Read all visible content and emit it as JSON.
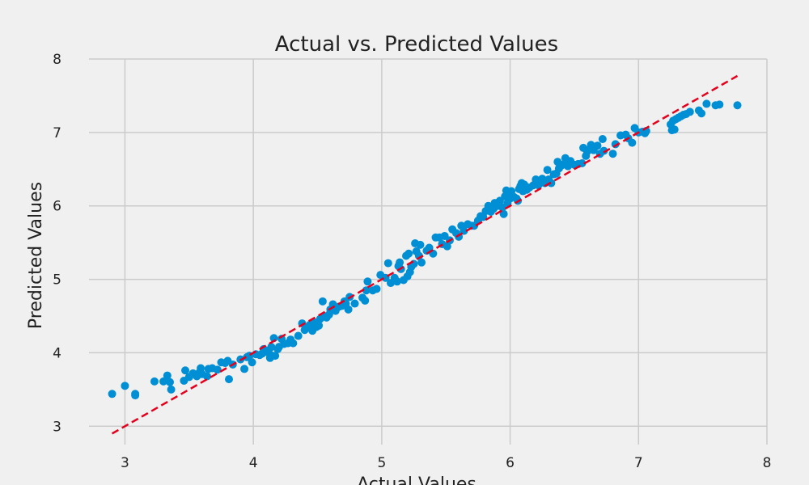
{
  "chart_data": {
    "type": "scatter",
    "title": "Actual vs. Predicted Values",
    "xlabel": "Actual Values",
    "ylabel": "Predicted Values",
    "xlim": [
      2.72,
      8.0
    ],
    "ylim": [
      2.75,
      8.0
    ],
    "xticks": [
      3,
      4,
      5,
      6,
      7,
      8
    ],
    "yticks": [
      3,
      4,
      5,
      6,
      7,
      8
    ],
    "grid": true,
    "point_color": "#008fd5",
    "reference_line": {
      "style": "dashed",
      "color": "#e5001c",
      "x": [
        2.9,
        7.77
      ],
      "y": [
        2.9,
        7.77
      ]
    },
    "series": [
      {
        "points": [
          [
            2.9,
            3.44
          ],
          [
            3.0,
            3.55
          ],
          [
            3.08,
            3.42
          ],
          [
            3.08,
            3.44
          ],
          [
            3.23,
            3.61
          ],
          [
            3.3,
            3.61
          ],
          [
            3.33,
            3.69
          ],
          [
            3.35,
            3.6
          ],
          [
            3.36,
            3.5
          ],
          [
            3.46,
            3.62
          ],
          [
            3.47,
            3.76
          ],
          [
            3.5,
            3.67
          ],
          [
            3.53,
            3.72
          ],
          [
            3.56,
            3.68
          ],
          [
            3.58,
            3.73
          ],
          [
            3.59,
            3.79
          ],
          [
            3.6,
            3.71
          ],
          [
            3.64,
            3.68
          ],
          [
            3.65,
            3.78
          ],
          [
            3.68,
            3.79
          ],
          [
            3.72,
            3.77
          ],
          [
            3.75,
            3.87
          ],
          [
            3.78,
            3.86
          ],
          [
            3.8,
            3.89
          ],
          [
            3.81,
            3.64
          ],
          [
            3.84,
            3.84
          ],
          [
            3.9,
            3.91
          ],
          [
            3.93,
            3.78
          ],
          [
            3.95,
            3.94
          ],
          [
            3.97,
            3.96
          ],
          [
            3.99,
            3.87
          ],
          [
            4.02,
            3.98
          ],
          [
            4.05,
            3.97
          ],
          [
            4.07,
            3.99
          ],
          [
            4.08,
            4.05
          ],
          [
            4.1,
            4.03
          ],
          [
            4.12,
            4.0
          ],
          [
            4.13,
            3.93
          ],
          [
            4.14,
            4.08
          ],
          [
            4.15,
            3.96
          ],
          [
            4.16,
            4.2
          ],
          [
            4.17,
            3.96
          ],
          [
            4.19,
            4.05
          ],
          [
            4.2,
            4.08
          ],
          [
            4.22,
            4.19
          ],
          [
            4.24,
            4.12
          ],
          [
            4.27,
            4.13
          ],
          [
            4.29,
            4.18
          ],
          [
            4.31,
            4.13
          ],
          [
            4.35,
            4.23
          ],
          [
            4.38,
            4.4
          ],
          [
            4.4,
            4.31
          ],
          [
            4.42,
            4.35
          ],
          [
            4.44,
            4.38
          ],
          [
            4.46,
            4.3
          ],
          [
            4.47,
            4.42
          ],
          [
            4.49,
            4.35
          ],
          [
            4.51,
            4.37
          ],
          [
            4.52,
            4.46
          ],
          [
            4.54,
            4.7
          ],
          [
            4.55,
            4.5
          ],
          [
            4.57,
            4.48
          ],
          [
            4.59,
            4.52
          ],
          [
            4.6,
            4.59
          ],
          [
            4.62,
            4.66
          ],
          [
            4.64,
            4.57
          ],
          [
            4.65,
            4.61
          ],
          [
            4.67,
            4.63
          ],
          [
            4.69,
            4.64
          ],
          [
            4.71,
            4.7
          ],
          [
            4.72,
            4.67
          ],
          [
            4.74,
            4.59
          ],
          [
            4.75,
            4.76
          ],
          [
            4.79,
            4.67
          ],
          [
            4.85,
            4.75
          ],
          [
            4.87,
            4.71
          ],
          [
            4.88,
            4.85
          ],
          [
            4.89,
            4.97
          ],
          [
            4.93,
            4.85
          ],
          [
            4.96,
            4.87
          ],
          [
            4.99,
            5.06
          ],
          [
            5.03,
            5.02
          ],
          [
            5.05,
            5.22
          ],
          [
            5.07,
            4.95
          ],
          [
            5.1,
            5.02
          ],
          [
            5.12,
            4.97
          ],
          [
            5.13,
            5.18
          ],
          [
            5.14,
            5.23
          ],
          [
            5.15,
            5.14
          ],
          [
            5.17,
            4.99
          ],
          [
            5.19,
            5.32
          ],
          [
            5.2,
            5.04
          ],
          [
            5.21,
            5.35
          ],
          [
            5.22,
            5.1
          ],
          [
            5.23,
            5.17
          ],
          [
            5.25,
            5.21
          ],
          [
            5.26,
            5.49
          ],
          [
            5.27,
            5.38
          ],
          [
            5.29,
            5.32
          ],
          [
            5.3,
            5.47
          ],
          [
            5.31,
            5.23
          ],
          [
            5.35,
            5.39
          ],
          [
            5.37,
            5.43
          ],
          [
            5.4,
            5.35
          ],
          [
            5.42,
            5.57
          ],
          [
            5.45,
            5.57
          ],
          [
            5.47,
            5.48
          ],
          [
            5.49,
            5.59
          ],
          [
            5.51,
            5.45
          ],
          [
            5.53,
            5.53
          ],
          [
            5.55,
            5.68
          ],
          [
            5.58,
            5.63
          ],
          [
            5.6,
            5.58
          ],
          [
            5.62,
            5.73
          ],
          [
            5.64,
            5.66
          ],
          [
            5.67,
            5.75
          ],
          [
            5.7,
            5.73
          ],
          [
            5.72,
            5.73
          ],
          [
            5.75,
            5.8
          ],
          [
            5.77,
            5.86
          ],
          [
            5.79,
            5.85
          ],
          [
            5.81,
            5.93
          ],
          [
            5.83,
            6.0
          ],
          [
            5.85,
            5.92
          ],
          [
            5.87,
            5.96
          ],
          [
            5.88,
            6.04
          ],
          [
            5.9,
            6.0
          ],
          [
            5.92,
            6.07
          ],
          [
            5.94,
            5.98
          ],
          [
            5.95,
            5.89
          ],
          [
            5.96,
            6.13
          ],
          [
            5.97,
            6.21
          ],
          [
            5.98,
            6.04
          ],
          [
            5.99,
            6.15
          ],
          [
            6.0,
            6.1
          ],
          [
            6.01,
            6.2
          ],
          [
            6.03,
            6.12
          ],
          [
            6.05,
            6.1
          ],
          [
            6.06,
            6.07
          ],
          [
            6.07,
            6.23
          ],
          [
            6.08,
            6.27
          ],
          [
            6.09,
            6.31
          ],
          [
            6.1,
            6.2
          ],
          [
            6.11,
            6.29
          ],
          [
            6.13,
            6.22
          ],
          [
            6.15,
            6.25
          ],
          [
            6.18,
            6.28
          ],
          [
            6.2,
            6.36
          ],
          [
            6.22,
            6.28
          ],
          [
            6.25,
            6.37
          ],
          [
            6.27,
            6.31
          ],
          [
            6.29,
            6.49
          ],
          [
            6.3,
            6.36
          ],
          [
            6.32,
            6.31
          ],
          [
            6.34,
            6.43
          ],
          [
            6.36,
            6.44
          ],
          [
            6.37,
            6.6
          ],
          [
            6.38,
            6.51
          ],
          [
            6.4,
            6.55
          ],
          [
            6.42,
            6.57
          ],
          [
            6.43,
            6.65
          ],
          [
            6.45,
            6.54
          ],
          [
            6.47,
            6.61
          ],
          [
            6.5,
            6.56
          ],
          [
            6.53,
            6.57
          ],
          [
            6.56,
            6.58
          ],
          [
            6.57,
            6.79
          ],
          [
            6.59,
            6.68
          ],
          [
            6.6,
            6.74
          ],
          [
            6.62,
            6.77
          ],
          [
            6.63,
            6.83
          ],
          [
            6.65,
            6.76
          ],
          [
            6.68,
            6.82
          ],
          [
            6.7,
            6.71
          ],
          [
            6.72,
            6.91
          ],
          [
            6.73,
            6.75
          ],
          [
            6.8,
            6.71
          ],
          [
            6.82,
            6.84
          ],
          [
            6.86,
            6.96
          ],
          [
            6.9,
            6.97
          ],
          [
            6.92,
            6.92
          ],
          [
            6.95,
            6.86
          ],
          [
            6.97,
            7.06
          ],
          [
            7.0,
            7.0
          ],
          [
            7.03,
            7.01
          ],
          [
            7.05,
            6.99
          ],
          [
            7.06,
            7.02
          ],
          [
            7.25,
            7.11
          ],
          [
            7.26,
            7.03
          ],
          [
            7.27,
            7.16
          ],
          [
            7.28,
            7.04
          ],
          [
            7.29,
            7.18
          ],
          [
            7.31,
            7.2
          ],
          [
            7.33,
            7.22
          ],
          [
            7.35,
            7.24
          ],
          [
            7.37,
            7.25
          ],
          [
            7.4,
            7.28
          ],
          [
            7.47,
            7.3
          ],
          [
            7.49,
            7.26
          ],
          [
            7.53,
            7.39
          ],
          [
            7.6,
            7.37
          ],
          [
            7.63,
            7.38
          ],
          [
            7.77,
            7.37
          ]
        ]
      }
    ]
  }
}
